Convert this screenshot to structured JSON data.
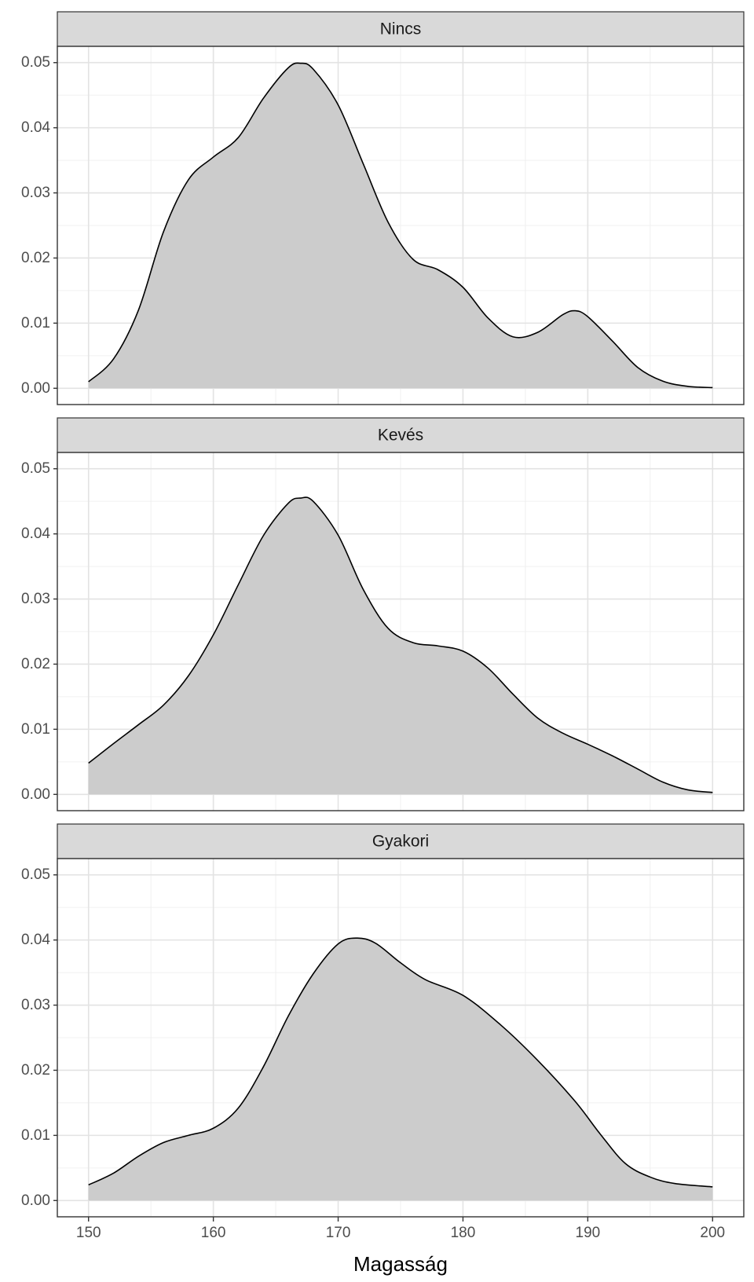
{
  "chart_data": {
    "type": "area",
    "xlabel": "Magasság",
    "ylabel": "",
    "xlim": [
      147.5,
      202.5
    ],
    "ylim": [
      -0.0025,
      0.0525
    ],
    "x_ticks": [
      150,
      160,
      170,
      180,
      190,
      200
    ],
    "x_tick_labels": [
      "150",
      "160",
      "170",
      "180",
      "190",
      "200"
    ],
    "y_ticks": [
      0.0,
      0.01,
      0.02,
      0.03,
      0.04,
      0.05
    ],
    "y_tick_labels": [
      "0.00",
      "0.01",
      "0.02",
      "0.03",
      "0.04",
      "0.05"
    ],
    "grid": true,
    "fill_color": "#cccccc",
    "line_color": "#000000",
    "panels": [
      {
        "label": "Nincs",
        "x": [
          150,
          152,
          154,
          156,
          158,
          160,
          162,
          164,
          166,
          167,
          168,
          170,
          172,
          174,
          176,
          178,
          180,
          182,
          184,
          186,
          188,
          189,
          190,
          192,
          194,
          196,
          198,
          200
        ],
        "y": [
          0.001,
          0.0045,
          0.012,
          0.024,
          0.032,
          0.0355,
          0.0385,
          0.0445,
          0.0492,
          0.0499,
          0.049,
          0.0435,
          0.0345,
          0.0255,
          0.0198,
          0.0182,
          0.0155,
          0.0108,
          0.0079,
          0.0086,
          0.0113,
          0.0119,
          0.011,
          0.0072,
          0.0032,
          0.0011,
          0.0003,
          0.0001
        ]
      },
      {
        "label": "Kevés",
        "x": [
          150,
          152,
          154,
          156,
          158,
          160,
          162,
          164,
          166,
          167,
          168,
          170,
          172,
          174,
          176,
          178,
          180,
          182,
          184,
          186,
          188,
          190,
          192,
          194,
          196,
          198,
          200
        ],
        "y": [
          0.0048,
          0.0078,
          0.0107,
          0.0137,
          0.0182,
          0.0245,
          0.0322,
          0.0397,
          0.0447,
          0.0455,
          0.045,
          0.0398,
          0.0315,
          0.0255,
          0.0233,
          0.0228,
          0.022,
          0.0194,
          0.0154,
          0.0117,
          0.0094,
          0.0077,
          0.0059,
          0.0039,
          0.0019,
          0.0007,
          0.0003
        ]
      },
      {
        "label": "Gyakori",
        "x": [
          150,
          152,
          154,
          156,
          158,
          160,
          162,
          164,
          166,
          168,
          170,
          171.5,
          173,
          175,
          177,
          180,
          183,
          186,
          189,
          191,
          193,
          195,
          197,
          200
        ],
        "y": [
          0.0024,
          0.0042,
          0.0068,
          0.0089,
          0.01,
          0.0111,
          0.0142,
          0.0205,
          0.0283,
          0.0348,
          0.0394,
          0.0403,
          0.0395,
          0.0365,
          0.0339,
          0.0315,
          0.027,
          0.0215,
          0.0152,
          0.0102,
          0.0057,
          0.0036,
          0.0026,
          0.0021
        ]
      }
    ]
  }
}
